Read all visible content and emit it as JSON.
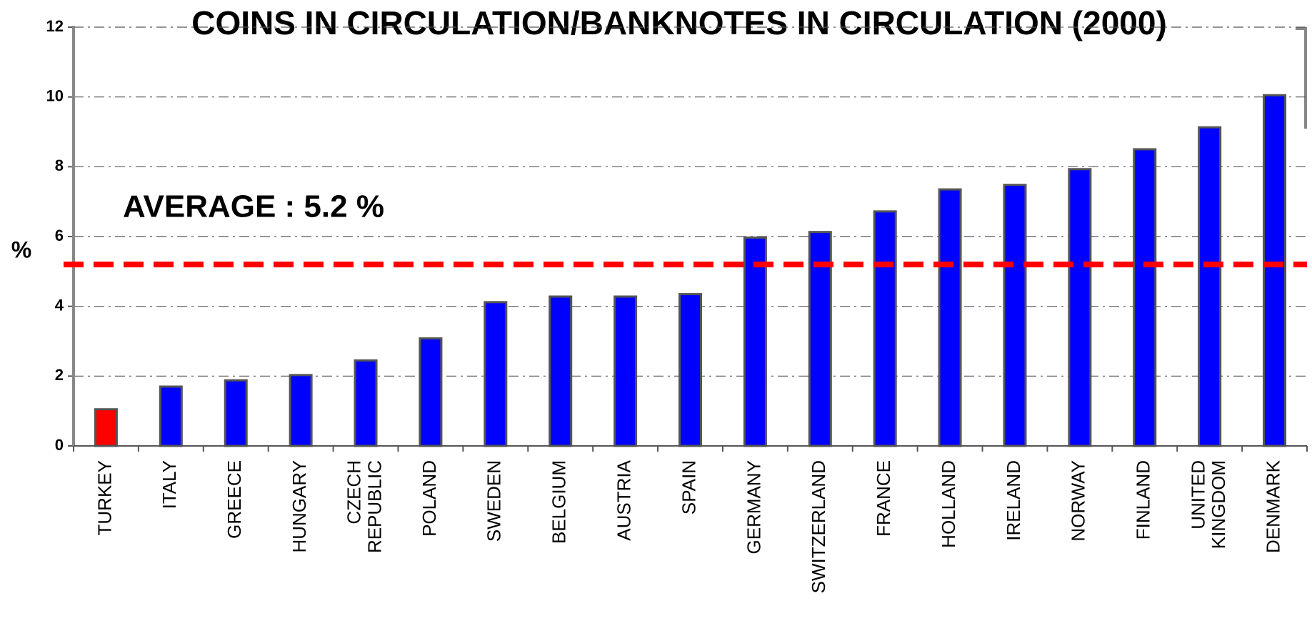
{
  "chart_data": {
    "type": "bar",
    "title": "COINS IN CIRCULATION/BANKNOTES IN CIRCULATION (2000)",
    "y_label": "%",
    "categories": [
      "TURKEY",
      "ITALY",
      "GREECE",
      "HUNGARY",
      "CZECH REPUBLIC",
      "POLAND",
      "SWEDEN",
      "BELGIUM",
      "AUSTRIA",
      "SPAIN",
      "GERMANY",
      "SWITZERLAND",
      "FRANCE",
      "HOLLAND",
      "IRELAND",
      "NORWAY",
      "FINLAND",
      "UNITED KINGDOM",
      "DENMARK"
    ],
    "values": [
      1.05,
      1.7,
      1.88,
      2.03,
      2.45,
      3.08,
      4.12,
      4.28,
      4.28,
      4.35,
      5.97,
      6.13,
      6.72,
      7.35,
      7.48,
      7.93,
      8.5,
      9.13,
      10.05
    ],
    "colors": [
      "#ff0000",
      "#0000ff",
      "#0000ff",
      "#0000ff",
      "#0000ff",
      "#0000ff",
      "#0000ff",
      "#0000ff",
      "#0000ff",
      "#0000ff",
      "#0000ff",
      "#0000ff",
      "#0000ff",
      "#0000ff",
      "#0000ff",
      "#0000ff",
      "#0000ff",
      "#0000ff",
      "#0000ff"
    ],
    "ylim": [
      0,
      12
    ],
    "yticks": [
      0,
      2,
      4,
      6,
      8,
      10,
      12
    ],
    "grid": true,
    "reference_line": {
      "value": 5.2,
      "label": "AVERAGE :  5.2 %",
      "color": "#ff0000"
    }
  }
}
